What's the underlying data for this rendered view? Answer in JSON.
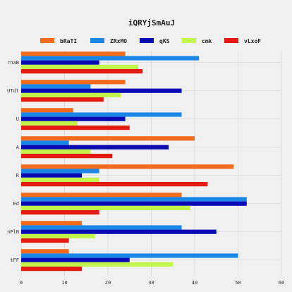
{
  "chart_data": {
    "type": "bar",
    "orientation": "horizontal",
    "title": "iQRYjSmAuJ",
    "xlabel": "",
    "ylabel": "",
    "xlim": [
      0,
      60
    ],
    "xticks": [
      0,
      10,
      20,
      30,
      40,
      50,
      60
    ],
    "grid": true,
    "legend_position": "top",
    "categories": [
      "rnaB",
      "UTdt",
      "U",
      "A",
      "R",
      "Ed",
      "nPlN",
      "tFF"
    ],
    "series": [
      {
        "name": "bRaTI",
        "color": "#f26b1d",
        "values": [
          24,
          24,
          12,
          40,
          49,
          37,
          14,
          11
        ]
      },
      {
        "name": "ZRxMO",
        "color": "#1a87e6",
        "values": [
          41,
          16,
          37,
          11,
          18,
          52,
          37,
          50
        ]
      },
      {
        "name": "qKS",
        "color": "#0a0ab4",
        "values": [
          18,
          37,
          24,
          34,
          14,
          52,
          45,
          25
        ]
      },
      {
        "name": "cmk",
        "color": "#c2f54a",
        "values": [
          27,
          23,
          13,
          16,
          18,
          39,
          17,
          35
        ]
      },
      {
        "name": "vLxoF",
        "color": "#e31a12",
        "values": [
          28,
          19,
          25,
          21,
          43,
          18,
          11,
          14
        ]
      }
    ]
  }
}
